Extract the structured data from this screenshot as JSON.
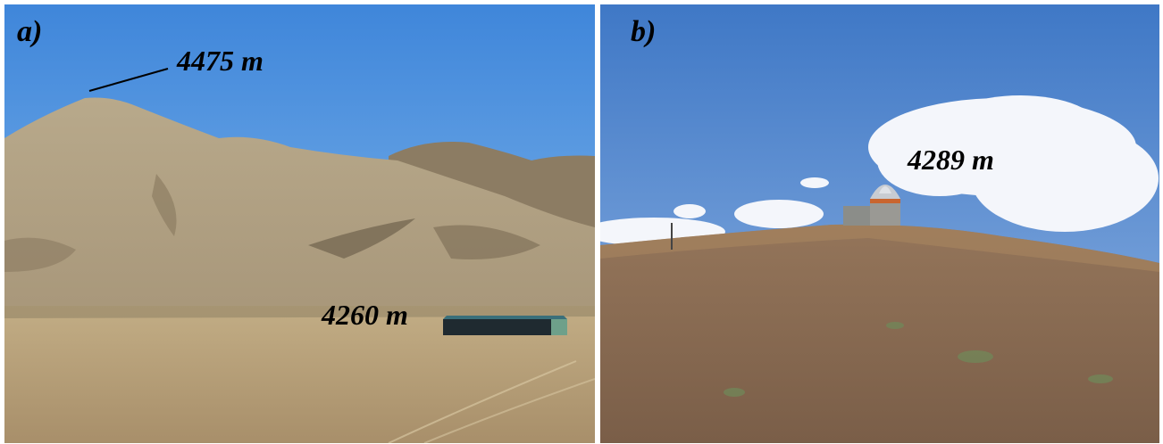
{
  "panels": [
    {
      "letter": "a)",
      "labels": {
        "peak_altitude": "4475 m",
        "base_altitude": "4260 m"
      },
      "scene": "mountain-valley-with-building"
    },
    {
      "letter": "b)",
      "labels": {
        "observatory_altitude": "4289 m"
      },
      "scene": "hilltop-observatory"
    }
  ],
  "colors": {
    "sky_a": "#4f93e0",
    "sky_b": "#4a82cc",
    "mountain": "#b0a184",
    "plain": "#b29d78",
    "hill_b": "#8a6a50",
    "building_roof": "#3a6f7a"
  }
}
